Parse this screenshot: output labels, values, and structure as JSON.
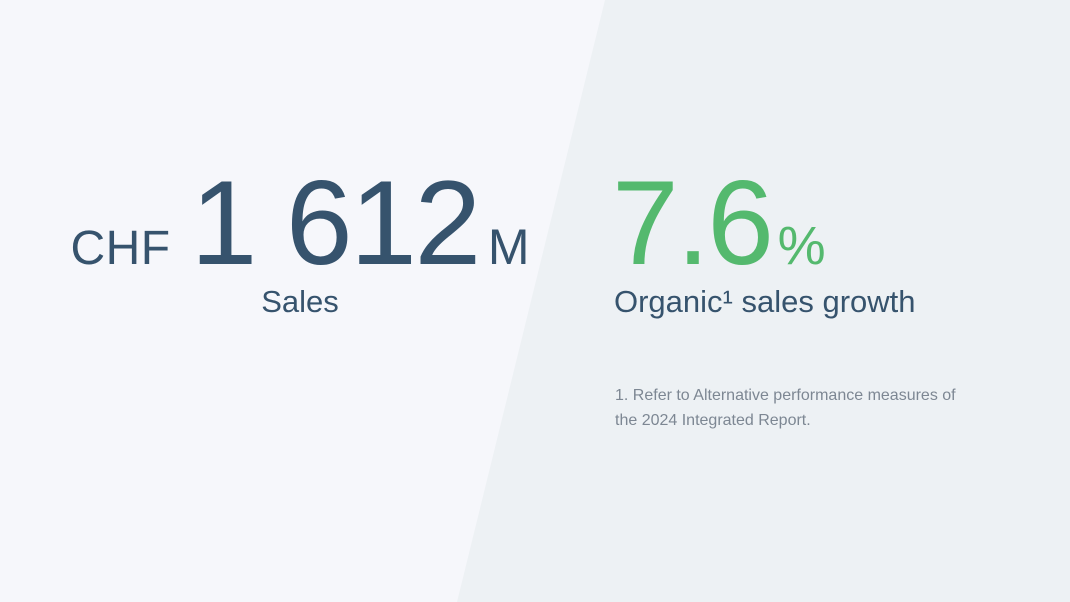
{
  "theme": {
    "left_bg": "#f6f7fb",
    "right_bg": "#edf1f4",
    "dark": "#36536d",
    "green": "#54b96e",
    "muted": "#7d8793"
  },
  "left_stat": {
    "currency": "CHF",
    "value": "1 612",
    "unit": "M",
    "label": "Sales"
  },
  "right_stat": {
    "value": "7.6",
    "unit": "%",
    "label": "Organic¹ sales growth",
    "footnote": "1. Refer to Alternative performance measures of the 2024 Integrated Report."
  }
}
